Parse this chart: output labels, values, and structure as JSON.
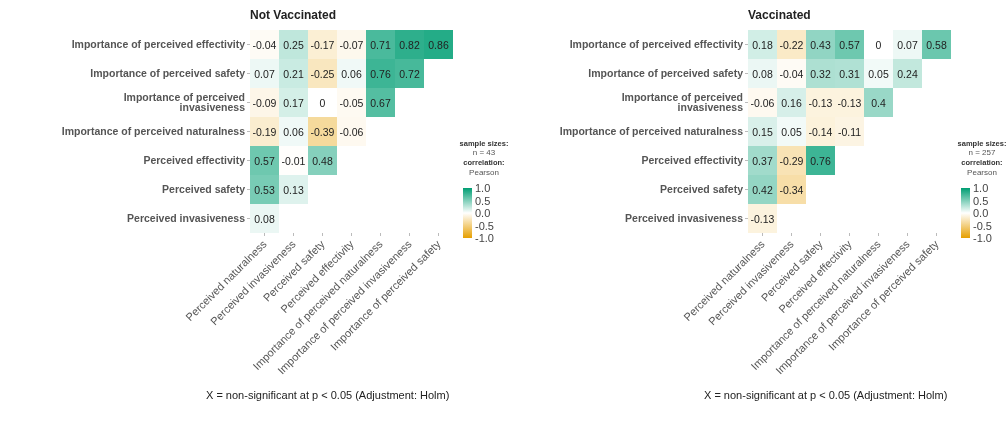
{
  "chart_data": [
    {
      "type": "heatmap",
      "title": "Not Vaccinated",
      "categories": [
        "Perceived naturalness",
        "Perceived invasiveness",
        "Perceived safety",
        "Perceived effectivity",
        "Importance of perceived naturalness",
        "Importance of perceived invasiveness",
        "Importance of perceived safety"
      ],
      "y_categories": [
        "Importance of perceived effectivity",
        "Importance of perceived safety",
        "Importance of perceived invasiveness",
        "Importance of perceived naturalness",
        "Perceived effectivity",
        "Perceived safety",
        "Perceived invasiveness"
      ],
      "cells": [
        [
          -0.04,
          0.25,
          -0.17,
          -0.07,
          0.71,
          0.82,
          0.86
        ],
        [
          0.07,
          0.21,
          -0.25,
          0.06,
          0.76,
          0.72,
          null
        ],
        [
          -0.09,
          0.17,
          0,
          -0.05,
          0.67,
          null,
          null
        ],
        [
          -0.19,
          0.06,
          -0.39,
          -0.06,
          null,
          null,
          null
        ],
        [
          0.57,
          -0.01,
          0.48,
          null,
          null,
          null,
          null
        ],
        [
          0.53,
          0.13,
          null,
          null,
          null,
          null,
          null
        ],
        [
          0.08,
          null,
          null,
          null,
          null,
          null,
          null
        ]
      ],
      "data_labels": true,
      "clim": [
        -1,
        1
      ],
      "cticks": [
        {
          "value": 1,
          "label": "1.0"
        },
        {
          "value": 0.5,
          "label": "0.5"
        },
        {
          "value": 0,
          "label": "0.0"
        },
        {
          "value": -0.5,
          "label": "-0.5"
        },
        {
          "value": -1,
          "label": "-1.0"
        }
      ],
      "legend_title": "sample sizes:",
      "clabel": "correlation:",
      "annotations": [
        "n = 43",
        "Pearson",
        "X = non-significant at p < 0.05 (Adjustment: Holm)"
      ]
    },
    {
      "type": "heatmap",
      "title": "Vaccinated",
      "categories": [
        "Perceived naturalness",
        "Perceived invasiveness",
        "Perceived safety",
        "Perceived effectivity",
        "Importance of perceived naturalness",
        "Importance of perceived invasiveness",
        "Importance of perceived safety"
      ],
      "y_categories": [
        "Importance of perceived effectivity",
        "Importance of perceived safety",
        "Importance of perceived invasiveness",
        "Importance of perceived naturalness",
        "Perceived effectivity",
        "Perceived safety",
        "Perceived invasiveness"
      ],
      "cells": [
        [
          0.18,
          -0.22,
          0.43,
          0.57,
          0,
          0.07,
          0.58
        ],
        [
          0.08,
          -0.04,
          0.32,
          0.31,
          0.05,
          0.24,
          null
        ],
        [
          -0.06,
          0.16,
          -0.13,
          -0.13,
          0.4,
          null,
          null
        ],
        [
          0.15,
          0.05,
          -0.14,
          -0.11,
          null,
          null,
          null
        ],
        [
          0.37,
          -0.29,
          0.76,
          null,
          null,
          null,
          null
        ],
        [
          0.42,
          -0.34,
          null,
          null,
          null,
          null,
          null
        ],
        [
          -0.13,
          null,
          null,
          null,
          null,
          null,
          null
        ]
      ],
      "data_labels": true,
      "clim": [
        -1,
        1
      ],
      "cticks": [
        {
          "value": 1,
          "label": "1.0"
        },
        {
          "value": 0.5,
          "label": "0.5"
        },
        {
          "value": 0,
          "label": "0.0"
        },
        {
          "value": -0.5,
          "label": "-0.5"
        },
        {
          "value": -1,
          "label": "-1.0"
        }
      ],
      "legend_title": "sample sizes:",
      "clabel": "correlation:",
      "annotations": [
        "n = 257",
        "Pearson",
        "X = non-significant at p < 0.05 (Adjustment: Holm)"
      ]
    }
  ]
}
